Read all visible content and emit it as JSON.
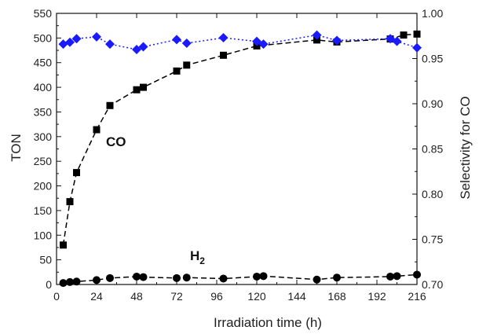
{
  "chart_data": {
    "type": "line",
    "xlabel": "Irradiation time (h)",
    "ylabel": "TON",
    "y2label": "Selectivity for CO",
    "xlim": [
      0,
      216
    ],
    "ylim": [
      0,
      550
    ],
    "y2lim": [
      0.7,
      1.0
    ],
    "xticks": [
      0,
      24,
      48,
      72,
      96,
      120,
      144,
      168,
      192,
      216
    ],
    "yticks": [
      0,
      50,
      100,
      150,
      200,
      250,
      300,
      350,
      400,
      450,
      500,
      550
    ],
    "y2ticks": [
      "0.70",
      "0.75",
      "0.80",
      "0.85",
      "0.90",
      "0.95",
      "1.00"
    ],
    "grid": false,
    "annotations": {
      "co": "CO",
      "h2_main": "H",
      "h2_sub": "2"
    },
    "colors": {
      "ton": "#000000",
      "selectivity": "#1a1aff",
      "y2label": "#2b2bff"
    },
    "series": [
      {
        "name": "CO",
        "axis": "left",
        "marker": "square",
        "line": "dashed",
        "x": [
          4,
          8,
          12,
          24,
          32,
          48,
          52,
          72,
          78,
          100,
          120,
          156,
          168,
          200,
          208,
          216
        ],
        "y": [
          80,
          168,
          227,
          314,
          363,
          395,
          400,
          433,
          445,
          465,
          484,
          496,
          492,
          498,
          506,
          508
        ]
      },
      {
        "name": "H2",
        "axis": "left",
        "marker": "circle",
        "line": "dashed",
        "x": [
          4,
          8,
          12,
          24,
          32,
          48,
          52,
          72,
          78,
          100,
          120,
          124,
          156,
          168,
          200,
          204,
          216
        ],
        "y": [
          3,
          5,
          6,
          9,
          13,
          16,
          15,
          13,
          14,
          12,
          16,
          17,
          10,
          14,
          16,
          17,
          20
        ]
      },
      {
        "name": "Selectivity for CO",
        "axis": "right",
        "marker": "diamond",
        "line": "dotted",
        "x": [
          4,
          8,
          12,
          24,
          32,
          48,
          52,
          72,
          78,
          100,
          120,
          124,
          156,
          168,
          200,
          204,
          216
        ],
        "y": [
          0.966,
          0.968,
          0.972,
          0.974,
          0.966,
          0.96,
          0.963,
          0.971,
          0.967,
          0.973,
          0.969,
          0.966,
          0.976,
          0.97,
          0.972,
          0.969,
          0.962
        ]
      }
    ]
  }
}
